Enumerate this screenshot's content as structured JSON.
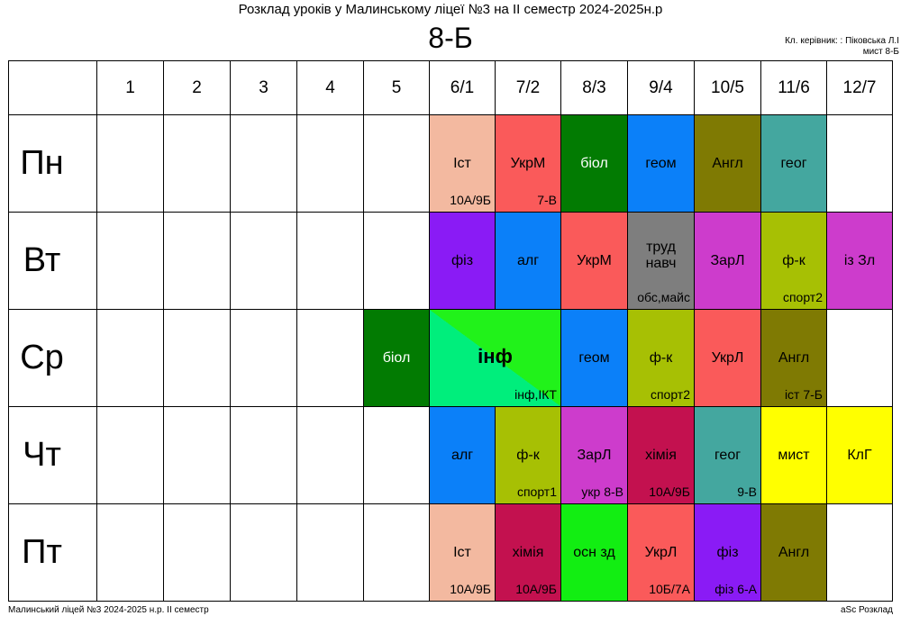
{
  "header": {
    "title": "Розклад уроків у Малинському ліцеї №3 на ІІ семестр 2024-2025н.р",
    "class_name": "8-Б",
    "teacher_line1": "Кл. керівник: : Піковська Л.І",
    "teacher_line2": "мист 8-Б"
  },
  "periods": [
    "1",
    "2",
    "3",
    "4",
    "5",
    "6/1",
    "7/2",
    "8/3",
    "9/4",
    "10/5",
    "11/6",
    "12/7"
  ],
  "days": [
    {
      "name": "Пн",
      "lessons": [
        null,
        null,
        null,
        null,
        null,
        {
          "subject": "Іст",
          "room": "10А/9Б",
          "bg": "#f3b9a0"
        },
        {
          "subject": "УкрМ",
          "room": "7-В",
          "bg": "#fa5a5a"
        },
        {
          "subject": "біол",
          "room": "",
          "bg": "#027b02",
          "fg": "#ffffff"
        },
        {
          "subject": "геом",
          "room": "",
          "bg": "#0b80f9"
        },
        {
          "subject": "Англ",
          "room": "",
          "bg": "#7f7a03"
        },
        {
          "subject": "геог",
          "room": "",
          "bg": "#44a79f"
        },
        null
      ]
    },
    {
      "name": "Вт",
      "lessons": [
        null,
        null,
        null,
        null,
        null,
        {
          "subject": "фіз",
          "room": "",
          "bg": "#8a1bf5"
        },
        {
          "subject": "алг",
          "room": "",
          "bg": "#0b80f9"
        },
        {
          "subject": "УкрМ",
          "room": "",
          "bg": "#fa5a5a"
        },
        {
          "subject": "труд навч",
          "room": "обс,майс",
          "bg": "#7e7e7e"
        },
        {
          "subject": "ЗарЛ",
          "room": "",
          "bg": "#cd3ccc"
        },
        {
          "subject": "ф-к",
          "room": "спорт2",
          "bg": "#a7c004"
        },
        {
          "subject": "із Зл",
          "room": "",
          "bg": "#cd3ccc"
        }
      ]
    },
    {
      "name": "Ср",
      "lessons": [
        null,
        null,
        null,
        null,
        {
          "subject": "біол",
          "room": "",
          "bg": "#027b02",
          "fg": "#ffffff"
        },
        {
          "subject": "інф",
          "room": "інф,ІКТ",
          "bg": "linear-gradient(to top right, #00ee7c 50%, #21f21a 50%)",
          "span": 2
        },
        {
          "subject": "геом",
          "room": "",
          "bg": "#0b80f9"
        },
        {
          "subject": "ф-к",
          "room": "спорт2",
          "bg": "#a7c004"
        },
        {
          "subject": "УкрЛ",
          "room": "",
          "bg": "#fa5a5a"
        },
        {
          "subject": "Англ",
          "room": "іст 7-Б",
          "bg": "#7f7a03"
        },
        null
      ]
    },
    {
      "name": "Чт",
      "lessons": [
        null,
        null,
        null,
        null,
        null,
        {
          "subject": "алг",
          "room": "",
          "bg": "#0b80f9"
        },
        {
          "subject": "ф-к",
          "room": "спорт1",
          "bg": "#a7c004"
        },
        {
          "subject": "ЗарЛ",
          "room": "укр 8-В",
          "bg": "#cd3ccc"
        },
        {
          "subject": "хімія",
          "room": "10А/9Б",
          "bg": "#c3114f"
        },
        {
          "subject": "геог",
          "room": "9-В",
          "bg": "#44a79f"
        },
        {
          "subject": "мист",
          "room": "",
          "bg": "#ffff00"
        },
        {
          "subject": "КлГ",
          "room": "",
          "bg": "#ffff00"
        }
      ]
    },
    {
      "name": "Пт",
      "lessons": [
        null,
        null,
        null,
        null,
        null,
        {
          "subject": "Іст",
          "room": "10А/9Б",
          "bg": "#f3b9a0"
        },
        {
          "subject": "хімія",
          "room": "10А/9Б",
          "bg": "#c3114f"
        },
        {
          "subject": "осн зд",
          "room": "",
          "bg": "#12ee12"
        },
        {
          "subject": "УкрЛ",
          "room": "10Б/7А",
          "bg": "#fa5a5a"
        },
        {
          "subject": "фіз",
          "room": "фіз 6-А",
          "bg": "#8a1bf5"
        },
        {
          "subject": "Англ",
          "room": "",
          "bg": "#7f7a03"
        },
        null
      ]
    }
  ],
  "footer": {
    "left": "Малинський ліцей №3  2024-2025 н.р. ІІ семестр",
    "right": "aSc Розклад"
  }
}
